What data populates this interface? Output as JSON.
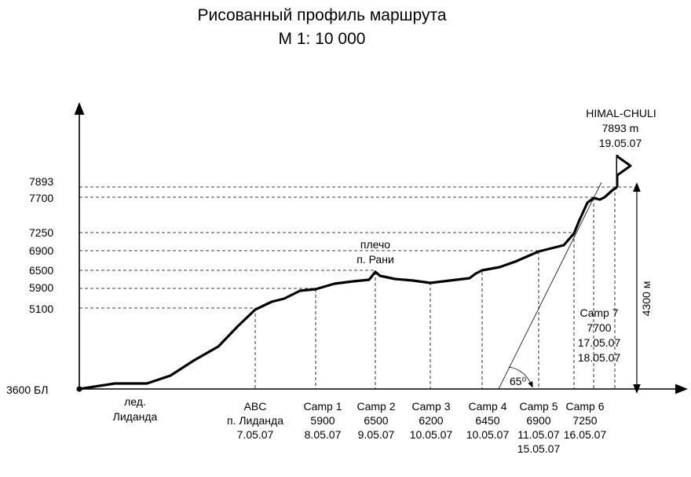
{
  "header": {
    "title": "Рисованный  профиль  маршрута",
    "scale": "М  1: 10 000"
  },
  "y_axis": {
    "base_label": "3600 БЛ",
    "ticks": [
      "7893",
      "7700",
      "7250",
      "6900",
      "6500",
      "5900",
      "5100"
    ]
  },
  "summit": {
    "name": "HIMAL-CHULI",
    "height": "7893 m",
    "date": "19.05.07"
  },
  "annotations": {
    "shoulder_line1": "плечо",
    "shoulder_line2": "п. Рани",
    "glacier_line1": "лед.",
    "glacier_line2": "Лиданда",
    "angle": "65⁰",
    "vertical_gain": "4300 м"
  },
  "camp7": {
    "name": "Camp 7",
    "height": "7700",
    "date1": "17.05.07",
    "date2": "18.05.07"
  },
  "camps": [
    {
      "name": "ABC",
      "line2": "п. Лиданда",
      "line3": "7.05.07",
      "line4": ""
    },
    {
      "name": "Camp 1",
      "line2": "5900",
      "line3": "8.05.07",
      "line4": ""
    },
    {
      "name": "Camp 2",
      "line2": "6500",
      "line3": "9.05.07",
      "line4": ""
    },
    {
      "name": "Camp 3",
      "line2": "6200",
      "line3": "10.05.07",
      "line4": ""
    },
    {
      "name": "Camp 4",
      "line2": "6450",
      "line3": "10.05.07",
      "line4": ""
    },
    {
      "name": "Camp 5",
      "line2": "6900",
      "line3": "11.05.07",
      "line4": "15.05.07"
    },
    {
      "name": "Camp 6",
      "line2": "7250",
      "line3": "16.05.07",
      "line4": ""
    }
  ]
}
